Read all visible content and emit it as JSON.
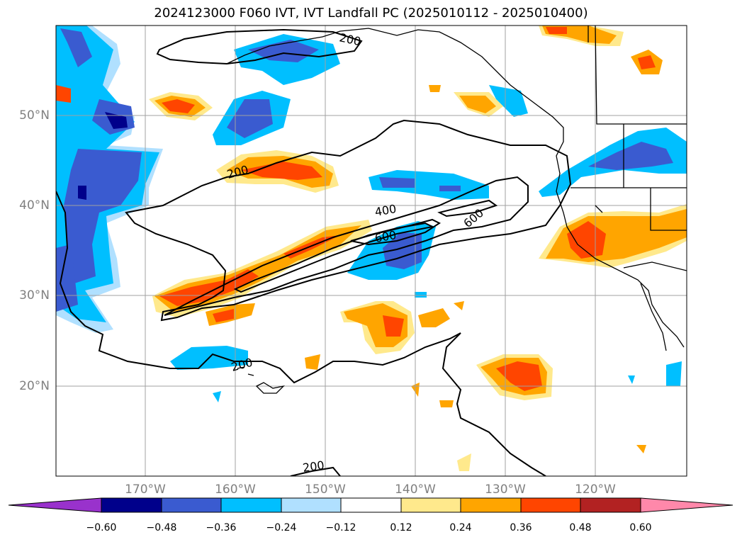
{
  "title": "2024123000 F060 IVT, IVT Landfall PC (2025010112 - 2025010400)",
  "map": {
    "lat_labels": [
      "50°N",
      "40°N",
      "30°N",
      "20°N"
    ],
    "lon_labels": [
      "170°W",
      "160°W",
      "150°W",
      "140°W",
      "130°W",
      "120°W"
    ],
    "contour_labels": [
      "200",
      "200",
      "400",
      "600",
      "600",
      "200",
      "200"
    ],
    "colors": {
      "land_border": "#000000",
      "grid": "#a0a0a0"
    }
  },
  "colorbar": {
    "ticks": [
      "−0.60",
      "−0.48",
      "−0.36",
      "−0.24",
      "−0.12",
      "0.12",
      "0.24",
      "0.36",
      "0.48",
      "0.60"
    ],
    "colors": [
      "#9932cc",
      "#00008b",
      "#3a5bd0",
      "#00bfff",
      "#b0e0ff",
      "#ffffff",
      "#ffe98c",
      "#ffa500",
      "#ff4500",
      "#b22222",
      "#ff88aa"
    ]
  }
}
